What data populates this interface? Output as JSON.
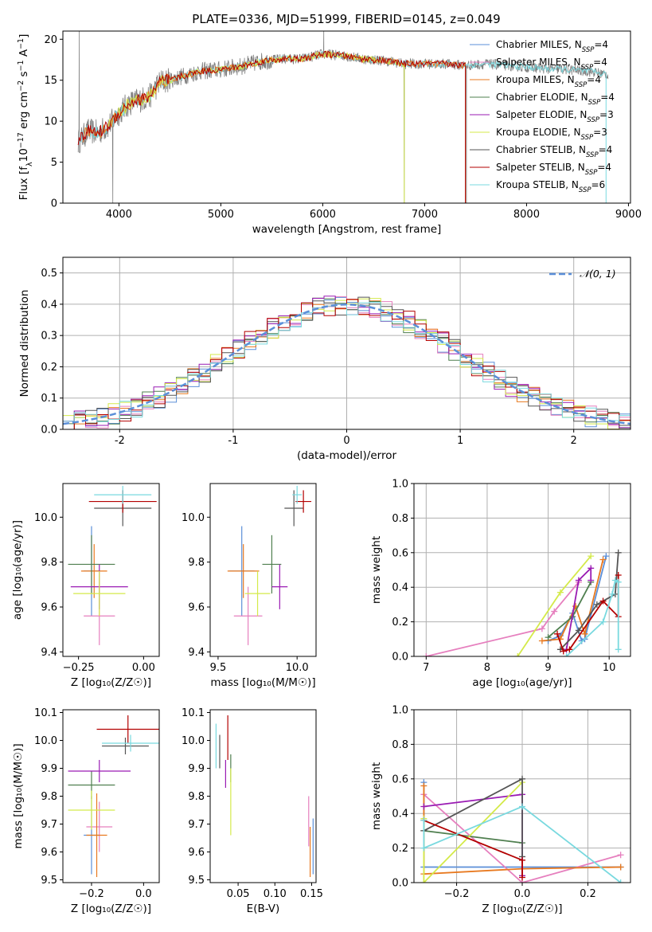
{
  "figure_title": "PLATE=0336, MJD=51999, FIBERID=0145, z=0.049",
  "colors": {
    "chabrier_miles": "#5b8fd8",
    "salpeter_miles": "#e67fbe",
    "kroupa_miles": "#e8791f",
    "chabrier_elodie": "#4f7f4f",
    "salpeter_elodie": "#9a1bb3",
    "kroupa_elodie": "#d4ea4a",
    "chabrier_stelib": "#555555",
    "salpeter_stelib": "#b30000",
    "kroupa_stelib": "#79d9df",
    "spectrum_gray": "#808080",
    "normal_curve": "#5b8fd8",
    "grid": "#b0b0b0"
  },
  "chart_data": [
    {
      "id": "spectrum",
      "type": "line",
      "title": "PLATE=0336, MJD=51999, FIBERID=0145, z=0.049",
      "xlabel": "wavelength [Angstrom, rest frame]",
      "ylabel_parts": [
        "Flux [f",
        "λ",
        "10",
        "−17",
        " erg cm",
        "−2",
        " s",
        "−1",
        " A",
        "−1",
        "]"
      ],
      "xlim": [
        3450,
        9020
      ],
      "ylim": [
        0,
        21
      ],
      "xticks": [
        4000,
        5000,
        6000,
        7000,
        8000,
        9000
      ],
      "yticks": [
        0,
        5,
        10,
        15,
        20
      ],
      "legend_position": "upper-right",
      "legend": [
        {
          "prefix": "Chabrier MILES, N",
          "sub": "SSP",
          "suffix": "=4",
          "color_key": "chabrier_miles"
        },
        {
          "prefix": "Salpeter MILES, N",
          "sub": "SSP",
          "suffix": "=4",
          "color_key": "salpeter_miles"
        },
        {
          "prefix": "Kroupa MILES, N",
          "sub": "SSP",
          "suffix": "=4",
          "color_key": "kroupa_miles"
        },
        {
          "prefix": "Chabrier ELODIE, N",
          "sub": "SSP",
          "suffix": "=4",
          "color_key": "chabrier_elodie"
        },
        {
          "prefix": "Salpeter ELODIE, N",
          "sub": "SSP",
          "suffix": "=3",
          "color_key": "salpeter_elodie"
        },
        {
          "prefix": "Kroupa ELODIE, N",
          "sub": "SSP",
          "suffix": "=3",
          "color_key": "kroupa_elodie"
        },
        {
          "prefix": "Chabrier STELIB, N",
          "sub": "SSP",
          "suffix": "=4",
          "color_key": "chabrier_stelib"
        },
        {
          "prefix": "Salpeter STELIB, N",
          "sub": "SSP",
          "suffix": "=4",
          "color_key": "salpeter_stelib"
        },
        {
          "prefix": "Kroupa STELIB, N",
          "sub": "SSP",
          "suffix": "=6",
          "color_key": "kroupa_stelib"
        }
      ],
      "continuum": {
        "x": [
          3600,
          3700,
          3800,
          3900,
          4000,
          4100,
          4200,
          4300,
          4400,
          4500,
          4600,
          4800,
          5000,
          5200,
          5400,
          5600,
          5800,
          6000,
          6200,
          6400,
          6600,
          6800,
          7000,
          7200,
          7400,
          7600,
          7800,
          8000,
          8200,
          8400,
          8600,
          8800
        ],
        "y": [
          7.5,
          8.8,
          8.6,
          9.5,
          11.0,
          12.2,
          12.6,
          13.0,
          14.8,
          15.0,
          15.4,
          16.1,
          16.3,
          16.7,
          17.3,
          17.6,
          17.6,
          18.2,
          18.0,
          17.6,
          17.4,
          17.0,
          17.0,
          17.0,
          16.8,
          17.0,
          16.8,
          16.6,
          16.4,
          16.3,
          16.1,
          15.7
        ]
      },
      "model_ranges": [
        {
          "color_key": "kroupa_stelib",
          "xmin": 3600,
          "xmax": 8780
        },
        {
          "color_key": "kroupa_miles",
          "xmin": 3650,
          "xmax": 7400
        },
        {
          "color_key": "kroupa_elodie",
          "xmin": 3900,
          "xmax": 6800
        },
        {
          "color_key": "salpeter_stelib",
          "xmin": 3600,
          "xmax": 7400
        }
      ],
      "spikes": [
        {
          "x": 3610,
          "y": 21
        },
        {
          "x": 3940,
          "y": 0
        },
        {
          "x": 6010,
          "y": 21
        },
        {
          "x": 6800,
          "y": 0
        },
        {
          "x": 7410,
          "y": 0
        }
      ]
    },
    {
      "id": "residuals",
      "type": "step",
      "xlabel": "(data-model)/error",
      "ylabel": "Normed distribution",
      "xlim": [
        -2.5,
        2.5
      ],
      "ylim": [
        0,
        0.55
      ],
      "xticks": [
        -2,
        -1,
        0,
        1,
        2
      ],
      "yticks": [
        0.0,
        0.1,
        0.2,
        0.3,
        0.4,
        0.5
      ],
      "bin_width": 0.1,
      "legend_position": "upper-right",
      "legend": [
        {
          "label": "𝒩(0, 1)",
          "style": "dashed"
        }
      ],
      "grid": true
    },
    {
      "id": "age_vs_Z",
      "type": "errorbar",
      "xlabel": "Z [log₁₀(Z/Z☉)]",
      "ylabel": "age  [log₁₀(age/yr)]",
      "xlim": [
        -0.31,
        0.06
      ],
      "ylim": [
        9.38,
        10.15
      ],
      "xticks": [
        -0.25,
        0.0
      ],
      "xtick_labels": [
        "−0.25",
        "0.00"
      ],
      "yticks": [
        9.4,
        9.6,
        9.8,
        10.0
      ],
      "points": [
        {
          "color_key": "chabrier_miles",
          "x": -0.2,
          "xerr": 0.03,
          "y": 9.76,
          "yerr": 0.2
        },
        {
          "color_key": "salpeter_miles",
          "x": -0.17,
          "xerr": 0.06,
          "y": 9.56,
          "yerr": 0.13
        },
        {
          "color_key": "kroupa_miles",
          "x": -0.19,
          "xerr": 0.05,
          "y": 9.76,
          "yerr": 0.12
        },
        {
          "color_key": "chabrier_elodie",
          "x": -0.2,
          "xerr": 0.09,
          "y": 9.79,
          "yerr": 0.13
        },
        {
          "color_key": "salpeter_elodie",
          "x": -0.17,
          "xerr": 0.11,
          "y": 9.69,
          "yerr": 0.1
        },
        {
          "color_key": "kroupa_elodie",
          "x": -0.17,
          "xerr": 0.1,
          "y": 9.66,
          "yerr": 0.1
        },
        {
          "color_key": "chabrier_stelib",
          "x": -0.08,
          "xerr": 0.11,
          "y": 10.04,
          "yerr": 0.08
        },
        {
          "color_key": "salpeter_stelib",
          "x": -0.08,
          "xerr": 0.13,
          "y": 10.07,
          "yerr": 0.05
        },
        {
          "color_key": "kroupa_stelib",
          "x": -0.08,
          "xerr": 0.11,
          "y": 10.1,
          "yerr": 0.04
        }
      ]
    },
    {
      "id": "age_vs_mass",
      "type": "errorbar",
      "xlabel": "mass [log₁₀(M/M☉)]",
      "ylabel": "",
      "xlim": [
        9.45,
        10.12
      ],
      "ylim": [
        9.38,
        10.15
      ],
      "xticks": [
        9.5,
        10.0
      ],
      "xtick_labels": [
        "9.5",
        "10.0"
      ],
      "yticks": [
        9.4,
        9.6,
        9.8,
        10.0
      ],
      "points": [
        {
          "color_key": "chabrier_miles",
          "x": 9.65,
          "xerr": 0.08,
          "y": 9.76,
          "yerr": 0.2
        },
        {
          "color_key": "salpeter_miles",
          "x": 9.69,
          "xerr": 0.09,
          "y": 9.56,
          "yerr": 0.13
        },
        {
          "color_key": "kroupa_miles",
          "x": 9.66,
          "xerr": 0.1,
          "y": 9.76,
          "yerr": 0.12
        },
        {
          "color_key": "chabrier_elodie",
          "x": 9.84,
          "xerr": 0.06,
          "y": 9.79,
          "yerr": 0.13
        },
        {
          "color_key": "salpeter_elodie",
          "x": 9.89,
          "xerr": 0.05,
          "y": 9.69,
          "yerr": 0.1
        },
        {
          "color_key": "kroupa_elodie",
          "x": 9.75,
          "xerr": 0.08,
          "y": 9.66,
          "yerr": 0.1
        },
        {
          "color_key": "chabrier_stelib",
          "x": 9.98,
          "xerr": 0.06,
          "y": 10.04,
          "yerr": 0.08
        },
        {
          "color_key": "salpeter_stelib",
          "x": 10.04,
          "xerr": 0.05,
          "y": 10.07,
          "yerr": 0.05
        },
        {
          "color_key": "kroupa_stelib",
          "x": 10.0,
          "xerr": 0.03,
          "y": 10.1,
          "yerr": 0.04
        }
      ]
    },
    {
      "id": "weight_vs_age",
      "type": "line",
      "xlabel": "age  [log₁₀(age/yr)]",
      "ylabel": "mass weight",
      "xlim": [
        6.8,
        10.35
      ],
      "ylim": [
        0,
        1.0
      ],
      "xticks": [
        7,
        8,
        9,
        10
      ],
      "yticks": [
        0.0,
        0.2,
        0.4,
        0.6,
        0.8,
        1.0
      ],
      "grid": true,
      "series": [
        {
          "color_key": "chabrier_miles",
          "x": [
            9.0,
            9.2,
            9.4,
            9.55,
            9.6,
            9.95
          ],
          "y": [
            0.09,
            0.12,
            0.25,
            0.09,
            0.1,
            0.58
          ]
        },
        {
          "color_key": "salpeter_miles",
          "x": [
            7.0,
            8.9,
            9.1,
            9.5
          ],
          "y": [
            0.0,
            0.16,
            0.26,
            0.43
          ]
        },
        {
          "color_key": "kroupa_miles",
          "x": [
            8.9,
            9.2,
            9.45,
            9.6,
            9.9
          ],
          "y": [
            0.09,
            0.1,
            0.29,
            0.13,
            0.56
          ]
        },
        {
          "color_key": "chabrier_elodie",
          "x": [
            9.0,
            9.4,
            9.7
          ],
          "y": [
            0.11,
            0.23,
            0.43
          ]
        },
        {
          "color_key": "salpeter_elodie",
          "x": [
            9.3,
            9.5,
            9.7,
            9.7
          ],
          "y": [
            0.04,
            0.44,
            0.51,
            0.44
          ]
        },
        {
          "color_key": "kroupa_elodie",
          "x": [
            8.5,
            9.2,
            9.7
          ],
          "y": [
            0.0,
            0.37,
            0.58
          ]
        },
        {
          "color_key": "chabrier_stelib",
          "x": [
            9.2,
            9.5,
            9.8,
            10.1,
            10.15
          ],
          "y": [
            0.04,
            0.15,
            0.3,
            0.36,
            0.6
          ]
        },
        {
          "color_key": "salpeter_stelib",
          "x": [
            9.15,
            9.25,
            9.35,
            9.9,
            10.15,
            10.15
          ],
          "y": [
            0.13,
            0.03,
            0.04,
            0.32,
            0.23,
            0.47
          ]
        },
        {
          "color_key": "kroupa_stelib",
          "x": [
            9.3,
            9.9,
            10.05,
            10.1,
            10.15,
            10.15
          ],
          "y": [
            0.0,
            0.2,
            0.36,
            0.44,
            0.43,
            0.04
          ]
        }
      ]
    },
    {
      "id": "mass_vs_Z",
      "type": "errorbar",
      "xlabel": "Z [log₁₀(Z/Z☉)]",
      "ylabel": "mass [log₁₀(M/M☉)]",
      "xlim": [
        -0.31,
        0.06
      ],
      "ylim": [
        9.49,
        10.11
      ],
      "xticks": [
        -0.2,
        0.0
      ],
      "xtick_labels": [
        "−0.2",
        "0.0"
      ],
      "yticks": [
        9.5,
        9.6,
        9.7,
        9.8,
        9.9,
        10.0,
        10.1
      ],
      "points": [
        {
          "color_key": "chabrier_miles",
          "x": -0.2,
          "xerr": 0.03,
          "y": 9.66,
          "yerr": 0.14
        },
        {
          "color_key": "salpeter_miles",
          "x": -0.17,
          "xerr": 0.05,
          "y": 9.69,
          "yerr": 0.09
        },
        {
          "color_key": "kroupa_miles",
          "x": -0.18,
          "xerr": 0.04,
          "y": 9.66,
          "yerr": 0.15
        },
        {
          "color_key": "chabrier_elodie",
          "x": -0.2,
          "xerr": 0.09,
          "y": 9.84,
          "yerr": 0.05
        },
        {
          "color_key": "salpeter_elodie",
          "x": -0.17,
          "xerr": 0.12,
          "y": 9.89,
          "yerr": 0.04
        },
        {
          "color_key": "kroupa_elodie",
          "x": -0.2,
          "xerr": 0.09,
          "y": 9.75,
          "yerr": 0.07
        },
        {
          "color_key": "chabrier_stelib",
          "x": -0.07,
          "xerr": 0.09,
          "y": 9.98,
          "yerr": 0.03
        },
        {
          "color_key": "salpeter_stelib",
          "x": -0.06,
          "xerr": 0.12,
          "y": 10.04,
          "yerr": 0.05
        },
        {
          "color_key": "kroupa_stelib",
          "x": -0.05,
          "xerr": 0.11,
          "y": 9.99,
          "yerr": 0.03
        }
      ]
    },
    {
      "id": "mass_vs_ebv",
      "type": "errorbar",
      "xlabel": "E(B-V)",
      "ylabel": "",
      "xlim": [
        0.012,
        0.156
      ],
      "ylim": [
        9.49,
        10.11
      ],
      "xticks": [
        0.05,
        0.1,
        0.15
      ],
      "xtick_labels": [
        "0.05",
        "0.10",
        "0.15"
      ],
      "yticks": [
        9.5,
        9.6,
        9.7,
        9.8,
        9.9,
        10.0,
        10.1
      ],
      "points": [
        {
          "color_key": "chabrier_miles",
          "x": 0.152,
          "xerr": 0.0,
          "y": 9.62,
          "yerr": 0.1
        },
        {
          "color_key": "salpeter_miles",
          "x": 0.146,
          "xerr": 0.0,
          "y": 9.71,
          "yerr": 0.09
        },
        {
          "color_key": "kroupa_miles",
          "x": 0.148,
          "xerr": 0.0,
          "y": 9.6,
          "yerr": 0.09
        },
        {
          "color_key": "chabrier_elodie",
          "x": 0.04,
          "xerr": 0.0,
          "y": 9.9,
          "yerr": 0.05
        },
        {
          "color_key": "salpeter_elodie",
          "x": 0.033,
          "xerr": 0.0,
          "y": 9.88,
          "yerr": 0.05
        },
        {
          "color_key": "kroupa_elodie",
          "x": 0.04,
          "xerr": 0.0,
          "y": 9.78,
          "yerr": 0.12
        },
        {
          "color_key": "chabrier_stelib",
          "x": 0.025,
          "xerr": 0.0,
          "y": 9.96,
          "yerr": 0.06
        },
        {
          "color_key": "salpeter_stelib",
          "x": 0.036,
          "xerr": 0.0,
          "y": 10.01,
          "yerr": 0.08
        },
        {
          "color_key": "kroupa_stelib",
          "x": 0.02,
          "xerr": 0.0,
          "y": 9.98,
          "yerr": 0.08
        }
      ]
    },
    {
      "id": "weight_vs_Z",
      "type": "line",
      "xlabel": "Z [log₁₀(Z/Z☉)]",
      "ylabel": "mass weight",
      "xlim": [
        -0.33,
        0.33
      ],
      "ylim": [
        0,
        1.0
      ],
      "xticks": [
        -0.2,
        0.0,
        0.2
      ],
      "xtick_labels": [
        "−0.2",
        "0.0",
        "0.2"
      ],
      "yticks": [
        0.0,
        0.2,
        0.4,
        0.6,
        0.8,
        1.0
      ],
      "grid": true,
      "series": [
        {
          "color_key": "chabrier_miles",
          "x": [
            -0.3,
            -0.3,
            -0.3,
            0.3
          ],
          "y": [
            0.58,
            0.09,
            0.09,
            0.09
          ]
        },
        {
          "color_key": "salpeter_miles",
          "x": [
            -0.3,
            0.0,
            0.3
          ],
          "y": [
            0.51,
            0.0,
            0.16
          ]
        },
        {
          "color_key": "kroupa_miles",
          "x": [
            -0.3,
            -0.3,
            0.0,
            0.3
          ],
          "y": [
            0.56,
            0.05,
            0.08,
            0.09
          ]
        },
        {
          "color_key": "chabrier_elodie",
          "x": [
            -0.3,
            0.0
          ],
          "y": [
            0.3,
            0.23
          ]
        },
        {
          "color_key": "salpeter_elodie",
          "x": [
            -0.3,
            0.0,
            0.0
          ],
          "y": [
            0.44,
            0.51,
            0.04
          ]
        },
        {
          "color_key": "kroupa_elodie",
          "x": [
            -0.3,
            -0.3,
            0.0
          ],
          "y": [
            0.37,
            0.0,
            0.58
          ]
        },
        {
          "color_key": "chabrier_stelib",
          "x": [
            -0.3,
            0.0,
            0.0
          ],
          "y": [
            0.3,
            0.6,
            0.15
          ]
        },
        {
          "color_key": "salpeter_stelib",
          "x": [
            -0.3,
            0.0,
            0.0
          ],
          "y": [
            0.36,
            0.13,
            0.03
          ]
        },
        {
          "color_key": "kroupa_stelib",
          "x": [
            -0.3,
            -0.3,
            0.0,
            0.3
          ],
          "y": [
            0.36,
            0.2,
            0.44,
            0.0
          ]
        }
      ]
    }
  ]
}
